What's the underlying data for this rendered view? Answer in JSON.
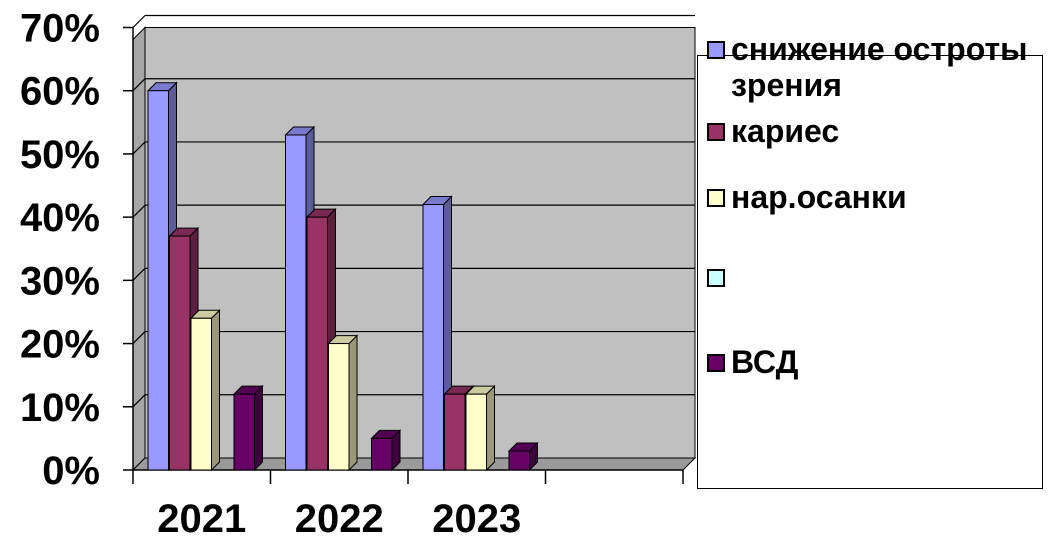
{
  "chart_data": {
    "type": "bar",
    "categories": [
      "2021",
      "2022",
      "2023",
      ""
    ],
    "series": [
      {
        "name": "снижение остроты зрения",
        "color": "#9999ff",
        "values": [
          60,
          53,
          42,
          null
        ]
      },
      {
        "name": "кариес",
        "color": "#993366",
        "values": [
          37,
          40,
          12,
          null
        ]
      },
      {
        "name": "нар.осанки",
        "color": "#ffffcc",
        "values": [
          24,
          20,
          12,
          null
        ]
      },
      {
        "name": "",
        "color": "#ccffff",
        "values": [
          null,
          null,
          null,
          null
        ]
      },
      {
        "name": "ВСД",
        "color": "#660066",
        "values": [
          12,
          5,
          3,
          null
        ]
      }
    ],
    "ylim": [
      0,
      70
    ],
    "yticks": [
      "0%",
      "10%",
      "20%",
      "30%",
      "40%",
      "50%",
      "60%",
      "70%"
    ],
    "grid": true,
    "legend_position": "right",
    "plot_background": "#c0c0c0"
  }
}
